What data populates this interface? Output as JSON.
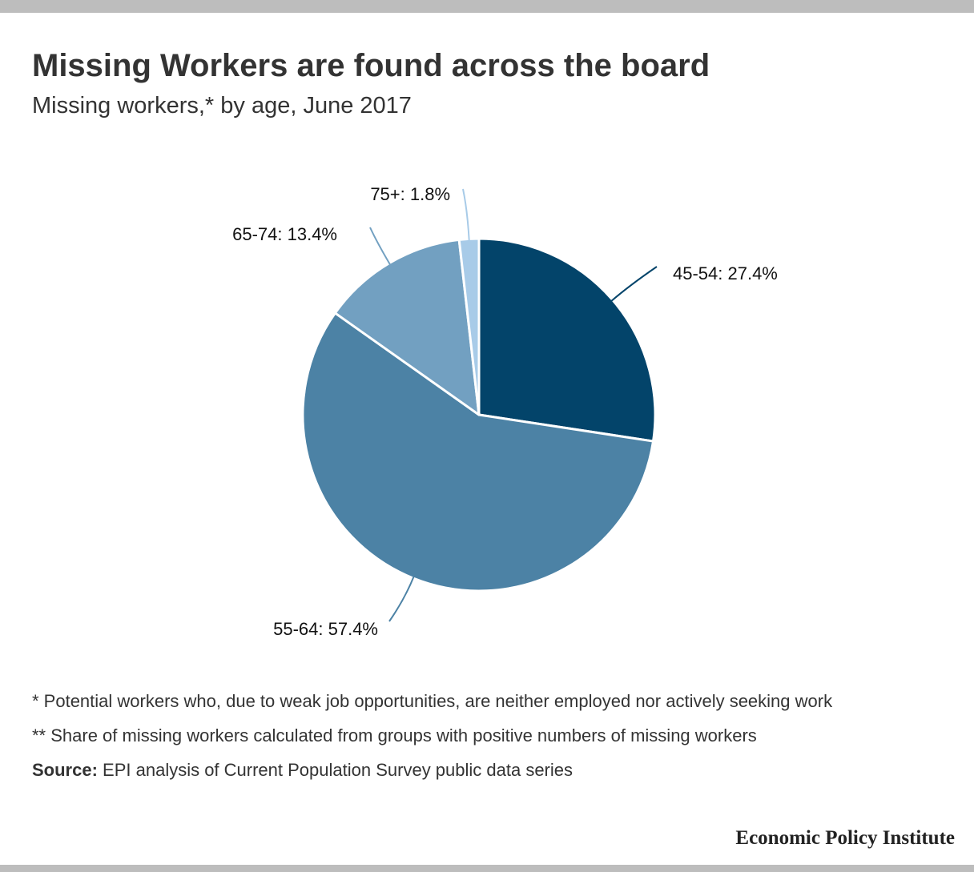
{
  "header": {
    "title": "Missing Workers are found across the board",
    "subtitle": "Missing workers,* by age, June 2017"
  },
  "chart_data": {
    "type": "pie",
    "title": "Missing Workers are found across the board",
    "subtitle": "Missing workers,* by age, June 2017",
    "slices": [
      {
        "label": "45-54",
        "value": 27.4,
        "display": "45-54: 27.4%",
        "color": "#03446a"
      },
      {
        "label": "55-64",
        "value": 57.4,
        "display": "55-64: 57.4%",
        "color": "#4c82a5"
      },
      {
        "label": "65-74",
        "value": 13.4,
        "display": "65-74: 13.4%",
        "color": "#72a0c1"
      },
      {
        "label": "75+",
        "value": 1.8,
        "display": "75+: 1.8%",
        "color": "#a8cbe8"
      }
    ],
    "unit": "%",
    "start": "12 o'clock",
    "direction": "clockwise"
  },
  "footer": {
    "note1": "* Potential workers who, due to weak job opportunities, are neither employed nor actively seeking work",
    "note2": "** Share of missing workers calculated from groups with positive numbers of missing workers",
    "source_label": "Source:",
    "source_text": " EPI analysis of Current Population Survey public data series",
    "brand": "Economic Policy Institute"
  },
  "colors": {
    "frame_bar": "#bdbdbd",
    "slice_border": "#ffffff"
  }
}
